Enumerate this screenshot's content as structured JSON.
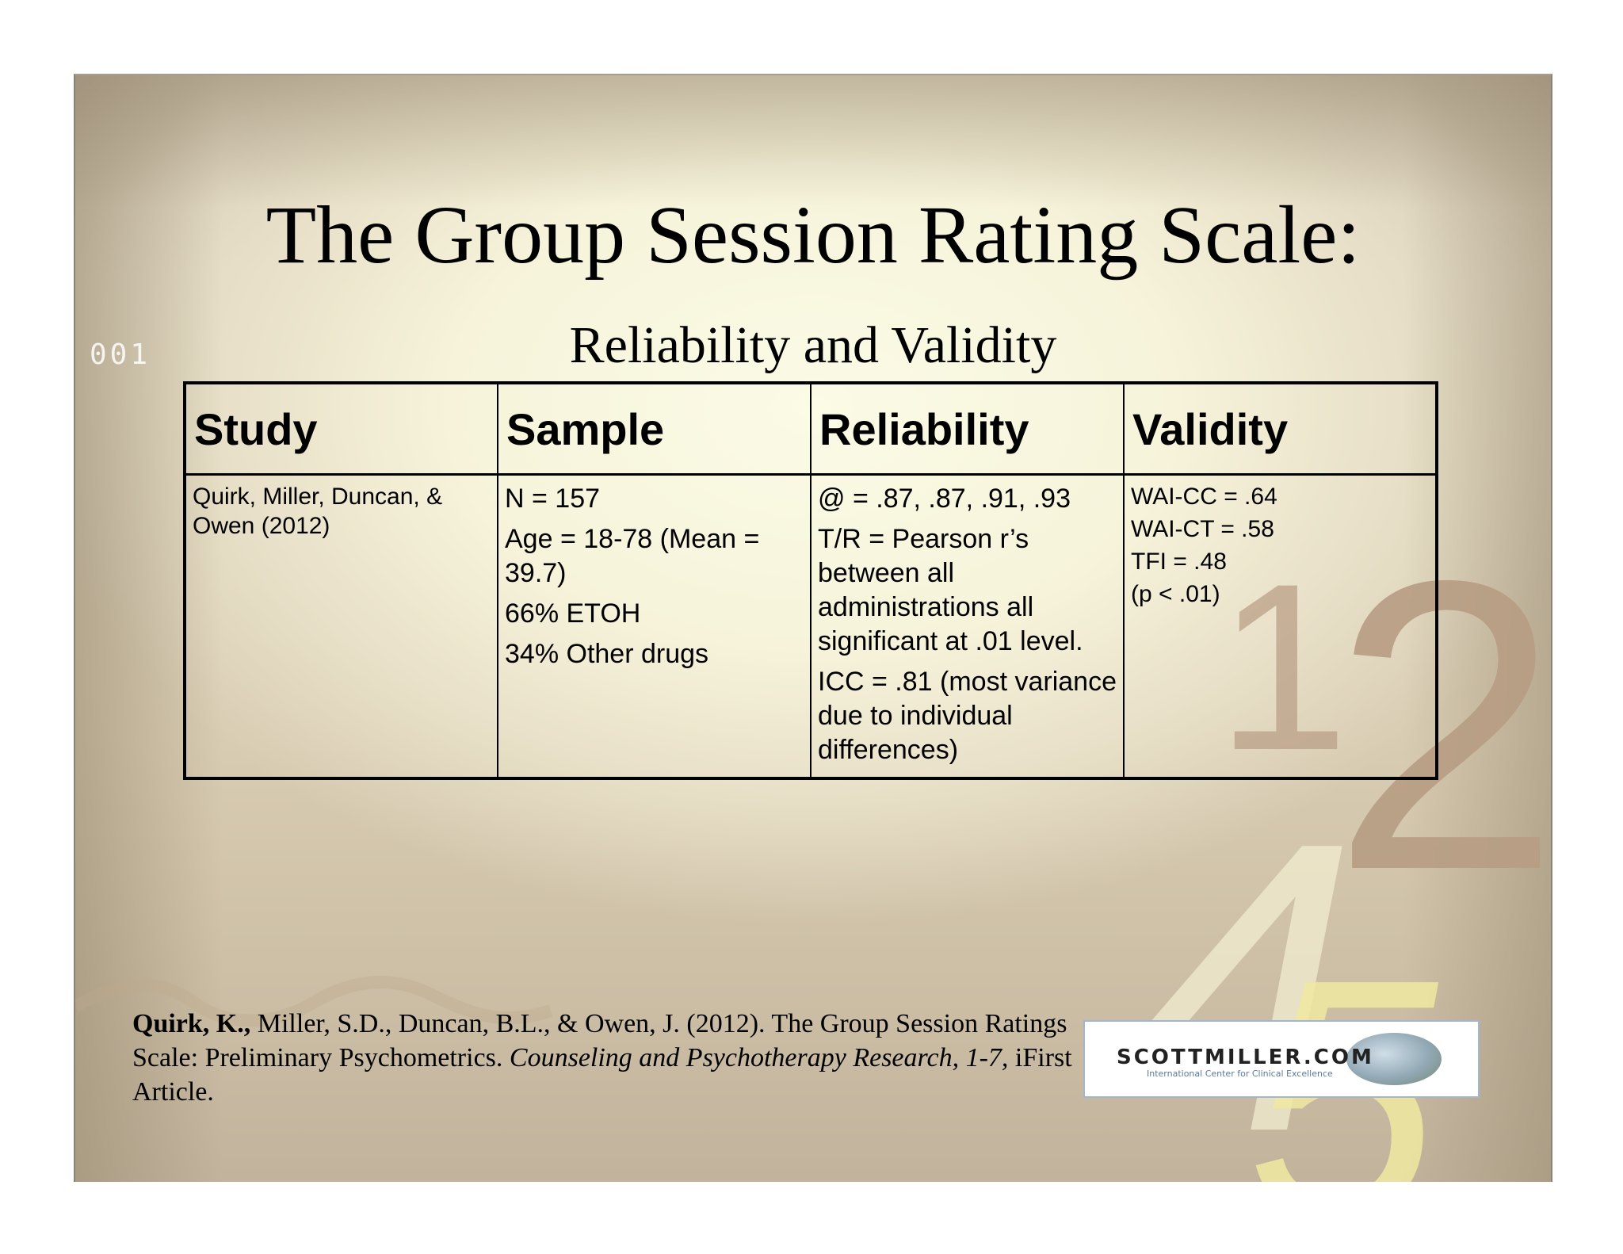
{
  "slide": {
    "title": "The Group Session Rating Scale:",
    "subtitle": "Reliability and Validity",
    "decorative_digits": "001",
    "decorative_numbers": [
      "1",
      "2",
      "4",
      "5"
    ],
    "colors": {
      "background": "#f6f3da",
      "frame": "#cdc2ad",
      "numeral_brown": "#b49a80",
      "numeral_yellow": "#efe9a5"
    }
  },
  "table": {
    "headers": [
      "Study",
      "Sample",
      "Reliability",
      "Validity"
    ],
    "row": {
      "study": "Quirk, Miller, Duncan, & Owen (2012)",
      "sample": [
        "N = 157",
        "Age = 18-78 (Mean = 39.7)",
        "66% ETOH",
        "34% Other drugs"
      ],
      "reliability": [
        "@ = .87, .87, .91, .93",
        "T/R = Pearson r’s between all administrations all significant at .01 level.",
        "ICC = .81 (most variance due to individual differences)"
      ],
      "validity": [
        "WAI-CC = .64",
        "WAI-CT = .58",
        "TFI = .48",
        "(p < .01)"
      ]
    }
  },
  "citation": {
    "author_bold": "Quirk, K.,",
    "rest": " Miller, S.D., Duncan, B.L., & Owen, J. (2012).  The Group Session Ratings Scale: Preliminary Psychometrics.  ",
    "journal_italic": "Counseling and Psychotherapy Research, 1-7,",
    "tail": " iFirst Article."
  },
  "logo": {
    "text": "SCOTTMILLER.COM",
    "subtext": "International Center for Clinical Excellence"
  }
}
